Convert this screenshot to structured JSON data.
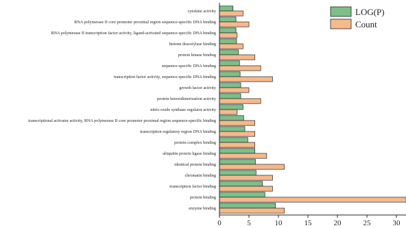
{
  "chart_data": {
    "type": "bar",
    "orientation": "horizontal",
    "categories": [
      "enzyme binding",
      "protein binding",
      "transcription factor binding",
      "chromatin binding",
      "identical protein binding",
      "ubiquitin protein ligase binding",
      "protein complex binding",
      "transcription regulatory region DNA binding",
      "transcriptional activator activity, RNA polymerase II core promoter proximal region sequence-specific binding",
      "nitric-oxide synthase regulator activity",
      "protein heterodimerization activity",
      "growth factor activity",
      "transcription factor activity, sequence-specific DNA binding",
      "sequence-specific DNA binding",
      "protein kinase binding",
      "histone deacetylase binding",
      "RNA polymerase II transcription factor activity, ligand-activated sequence-specific DNA binding",
      "RNA polymerase II core promoter proximal region sequence-specific DNA binding",
      "cytokine activity"
    ],
    "series": [
      {
        "name": "LOG(P)",
        "color": "#7dbf8a",
        "values": [
          9.5,
          7.7,
          7.3,
          6.2,
          6.1,
          6.0,
          4.8,
          4.3,
          4.1,
          4.0,
          3.6,
          3.6,
          3.5,
          3.4,
          3.2,
          2.9,
          2.8,
          2.8,
          2.3
        ]
      },
      {
        "name": "Count",
        "color": "#f6b98c",
        "values": [
          11,
          32,
          9,
          9,
          11,
          8,
          6,
          6,
          6,
          3,
          7,
          5,
          9,
          7,
          6,
          4,
          3,
          5,
          4
        ]
      }
    ],
    "xlim": [
      0,
      31
    ],
    "xticks": [
      0,
      5,
      10,
      15,
      20,
      25,
      30
    ],
    "legend_position": "top-right",
    "grid": false
  }
}
